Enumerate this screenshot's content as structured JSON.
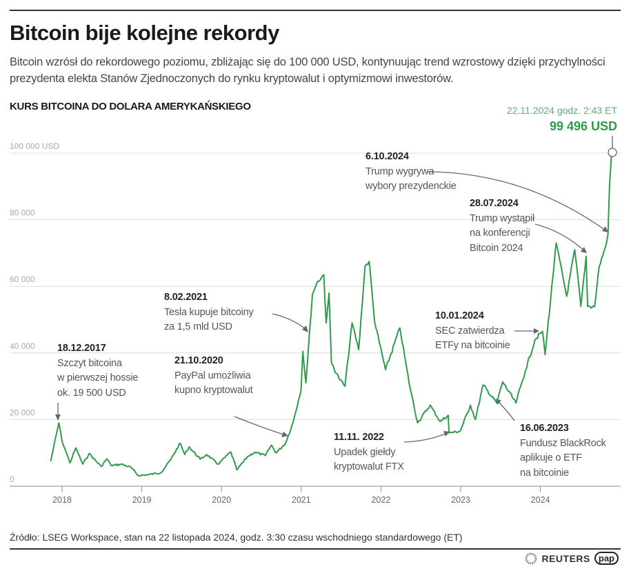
{
  "header": {
    "title": "Bitcoin bije kolejne rekordy",
    "subtitle": "Bitcoin wzrósł do rekordowego poziomu, zbliżając się do 100 000 USD, kontynuując trend wzrostowy dzięki przychylności prezydenta elekta Stanów Zjednoczonych do rynku kryptowalut i optymizmowi inwestorów."
  },
  "chart_data": {
    "type": "line",
    "title": "KURS BITCOINA DO DOLARA AMERYKAŃSKIEGO",
    "xlabel": "",
    "ylabel": "",
    "x_ticks": [
      "2018",
      "2019",
      "2020",
      "2021",
      "2022",
      "2023",
      "2024"
    ],
    "y_ticks": [
      "0",
      "20 000",
      "40 000",
      "60 000",
      "80 000",
      "100 000 USD"
    ],
    "ylim": [
      0,
      100000
    ],
    "grid": "horizontal",
    "line_color": "#2e9a4a",
    "last_point": {
      "label_date": "22.11.2024 godz. 2:43 ET",
      "label_value": "99 496 USD"
    },
    "series": [
      {
        "points": [
          [
            "2017-11-10",
            7500
          ],
          [
            "2017-12-17",
            19000
          ],
          [
            "2018-01-01",
            13500
          ],
          [
            "2018-01-16",
            11000
          ],
          [
            "2018-02-06",
            7000
          ],
          [
            "2018-03-05",
            11500
          ],
          [
            "2018-04-06",
            6600
          ],
          [
            "2018-05-05",
            9800
          ],
          [
            "2018-06-29",
            5900
          ],
          [
            "2018-07-25",
            8200
          ],
          [
            "2018-08-14",
            6200
          ],
          [
            "2018-09-30",
            6600
          ],
          [
            "2018-11-14",
            5600
          ],
          [
            "2018-12-15",
            3200
          ],
          [
            "2019-01-31",
            3450
          ],
          [
            "2019-03-31",
            4100
          ],
          [
            "2019-05-14",
            8000
          ],
          [
            "2019-06-26",
            12900
          ],
          [
            "2019-07-17",
            9500
          ],
          [
            "2019-08-06",
            11800
          ],
          [
            "2019-09-26",
            8100
          ],
          [
            "2019-10-26",
            9500
          ],
          [
            "2019-12-17",
            6600
          ],
          [
            "2020-02-13",
            10300
          ],
          [
            "2020-03-12",
            4900
          ],
          [
            "2020-04-29",
            8800
          ],
          [
            "2020-06-01",
            10200
          ],
          [
            "2020-07-20",
            9200
          ],
          [
            "2020-08-17",
            12300
          ],
          [
            "2020-09-08",
            10000
          ],
          [
            "2020-10-21",
            12900
          ],
          [
            "2020-11-24",
            19100
          ],
          [
            "2020-12-31",
            29000
          ],
          [
            "2021-01-08",
            40500
          ],
          [
            "2021-01-22",
            31000
          ],
          [
            "2021-02-21",
            57500
          ],
          [
            "2021-03-13",
            61000
          ],
          [
            "2021-04-14",
            63500
          ],
          [
            "2021-04-25",
            49000
          ],
          [
            "2021-05-08",
            58000
          ],
          [
            "2021-05-19",
            37000
          ],
          [
            "2021-06-22",
            32500
          ],
          [
            "2021-07-20",
            30000
          ],
          [
            "2021-08-22",
            49000
          ],
          [
            "2021-09-21",
            41000
          ],
          [
            "2021-10-20",
            66000
          ],
          [
            "2021-11-08",
            67500
          ],
          [
            "2021-12-04",
            49000
          ],
          [
            "2022-01-22",
            35000
          ],
          [
            "2022-03-29",
            47500
          ],
          [
            "2022-05-10",
            31000
          ],
          [
            "2022-06-18",
            19000
          ],
          [
            "2022-08-14",
            24300
          ],
          [
            "2022-09-30",
            19400
          ],
          [
            "2022-11-05",
            21300
          ],
          [
            "2022-11-09",
            16000
          ],
          [
            "2022-12-30",
            16500
          ],
          [
            "2023-02-15",
            24300
          ],
          [
            "2023-03-10",
            20000
          ],
          [
            "2023-04-14",
            30400
          ],
          [
            "2023-06-15",
            25000
          ],
          [
            "2023-07-13",
            31300
          ],
          [
            "2023-09-11",
            25000
          ],
          [
            "2023-10-24",
            34500
          ],
          [
            "2023-12-08",
            44000
          ],
          [
            "2024-01-11",
            46500
          ],
          [
            "2024-01-23",
            39500
          ],
          [
            "2024-03-14",
            73000
          ],
          [
            "2024-05-01",
            57000
          ],
          [
            "2024-06-07",
            71000
          ],
          [
            "2024-07-05",
            54000
          ],
          [
            "2024-07-29",
            69000
          ],
          [
            "2024-08-05",
            54000
          ],
          [
            "2024-09-06",
            53900
          ],
          [
            "2024-09-27",
            66000
          ],
          [
            "2024-10-29",
            72500
          ],
          [
            "2024-11-06",
            75600
          ],
          [
            "2024-11-13",
            90000
          ],
          [
            "2024-11-22",
            99496
          ]
        ]
      }
    ],
    "annotations": [
      {
        "date": "18.12.2017",
        "lines": [
          "Szczyt bitcoina",
          "w pierwszej hossie",
          "ok. 19 500 USD"
        ]
      },
      {
        "date": "21.10.2020",
        "lines": [
          "PayPal umożliwia",
          "kupno kryptowalut"
        ]
      },
      {
        "date": "8.02.2021",
        "lines": [
          "Tesla kupuje bitcoiny",
          "za 1,5 mld USD"
        ]
      },
      {
        "date": "11.11. 2022",
        "lines": [
          "Upadek giełdy",
          "kryptowalut FTX"
        ]
      },
      {
        "date": "16.06.2023",
        "lines": [
          "Fundusz BlackRock",
          "aplikuje o ETF",
          "na bitcoinie"
        ]
      },
      {
        "date": "10.01.2024",
        "lines": [
          "SEC zatwierdza",
          "ETFy na bitcoinie"
        ]
      },
      {
        "date": "28.07.2024",
        "lines": [
          "Trump wystąpił",
          "na konferencji",
          "Bitcoin 2024"
        ]
      },
      {
        "date": "6.10.2024",
        "lines": [
          "Trump wygrywa",
          "wybory prezydenckie"
        ]
      }
    ]
  },
  "footer": {
    "source": "Źródło: LSEG Workspace, stan na 22 listopada 2024, godz. 3:30 czasu wschodniego standardowego (ET)",
    "logos": [
      "REUTERS",
      "pap"
    ]
  }
}
